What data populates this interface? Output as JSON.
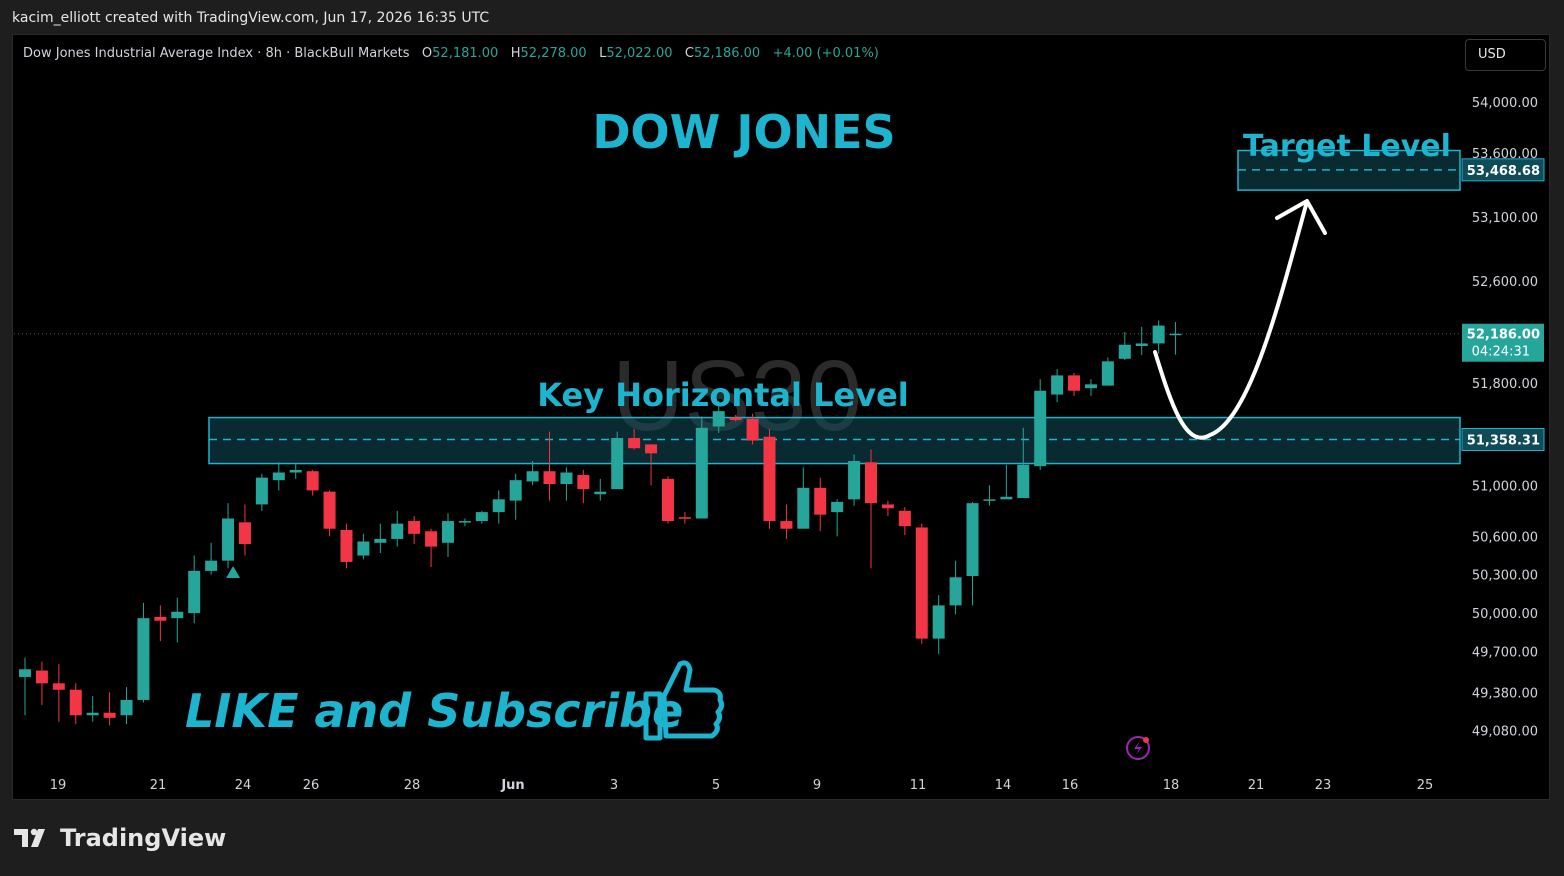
{
  "header": {
    "attribution": "kacim_elliott created with TradingView.com, Jun 17, 2026 16:35 UTC"
  },
  "legend": {
    "symbol_text": "Dow Jones Industrial Average Index · 8h · BlackBull Markets",
    "open_key": "O",
    "open": "52,181.00",
    "high_key": "H",
    "high": "52,278.00",
    "low_key": "L",
    "low": "52,022.00",
    "close_key": "C",
    "close": "52,186.00",
    "change": "+4.00 (+0.01%)"
  },
  "currency_button": "USD",
  "footer": {
    "brand": "TradingView"
  },
  "colors": {
    "up": "#26a69a",
    "down": "#f23645",
    "accent": "#1cb4cf",
    "zone_fill": "#0f4c57",
    "background": "#000000",
    "arrow": "#ffffff"
  },
  "chart_data": {
    "type": "candlestick",
    "watermark": "US30",
    "yaxis": {
      "ticks": [
        49080,
        49380,
        49700,
        50000,
        50300,
        50600,
        51000,
        51800,
        52600,
        53100,
        53600,
        54000
      ],
      "ylim": [
        48850,
        54250
      ]
    },
    "xaxis": {
      "ticks": [
        {
          "label": "19",
          "bold": false
        },
        {
          "label": "21",
          "bold": false
        },
        {
          "label": "24",
          "bold": false
        },
        {
          "label": "26",
          "bold": false
        },
        {
          "label": "28",
          "bold": false
        },
        {
          "label": "Jun",
          "bold": true
        },
        {
          "label": "3",
          "bold": false
        },
        {
          "label": "5",
          "bold": false
        },
        {
          "label": "9",
          "bold": false
        },
        {
          "label": "11",
          "bold": false
        },
        {
          "label": "14",
          "bold": false
        },
        {
          "label": "16",
          "bold": false
        },
        {
          "label": "18",
          "bold": false
        },
        {
          "label": "21",
          "bold": false
        },
        {
          "label": "23",
          "bold": false
        },
        {
          "label": "25",
          "bold": false
        }
      ]
    },
    "candles": [
      [
        49500,
        49560,
        49650,
        49200
      ],
      [
        49550,
        49450,
        49620,
        49280
      ],
      [
        49450,
        49400,
        49600,
        49150
      ],
      [
        49400,
        49200,
        49450,
        49130
      ],
      [
        49200,
        49220,
        49350,
        49150
      ],
      [
        49220,
        49180,
        49380,
        49120
      ],
      [
        49200,
        49320,
        49420,
        49130
      ],
      [
        49320,
        49960,
        50080,
        49300
      ],
      [
        49970,
        49940,
        50060,
        49780
      ],
      [
        49960,
        50010,
        50120,
        49770
      ],
      [
        50000,
        50330,
        50450,
        49920
      ],
      [
        50330,
        50410,
        50550,
        50300
      ],
      [
        50410,
        50740,
        50860,
        50350
      ],
      [
        50710,
        50540,
        50850,
        50450
      ],
      [
        50850,
        51060,
        51090,
        50800
      ],
      [
        51040,
        51100,
        51180,
        50960
      ],
      [
        51100,
        51120,
        51170,
        51050
      ],
      [
        51110,
        50960,
        51120,
        50920
      ],
      [
        50950,
        50660,
        50960,
        50600
      ],
      [
        50650,
        50400,
        50700,
        50350
      ],
      [
        50450,
        50560,
        50620,
        50420
      ],
      [
        50550,
        50580,
        50700,
        50470
      ],
      [
        50580,
        50700,
        50800,
        50520
      ],
      [
        50720,
        50620,
        50760,
        50540
      ],
      [
        50640,
        50520,
        50660,
        50360
      ],
      [
        50550,
        50720,
        50780,
        50440
      ],
      [
        50710,
        50720,
        50740,
        50680
      ],
      [
        50720,
        50790,
        50800,
        50700
      ],
      [
        50790,
        50890,
        50960,
        50700
      ],
      [
        50880,
        51040,
        51090,
        50730
      ],
      [
        51030,
        51110,
        51190,
        51000
      ],
      [
        51110,
        51010,
        51420,
        50880
      ],
      [
        51010,
        51100,
        51140,
        50880
      ],
      [
        51080,
        50970,
        51120,
        50860
      ],
      [
        50930,
        50950,
        51050,
        50880
      ],
      [
        50970,
        51370,
        51420,
        50990
      ],
      [
        51370,
        51290,
        51440,
        51280
      ],
      [
        51320,
        51250,
        51320,
        51000
      ],
      [
        51050,
        50720,
        51070,
        50700
      ],
      [
        50750,
        50740,
        50790,
        50700
      ],
      [
        50740,
        51450,
        51540,
        50740
      ],
      [
        51460,
        51580,
        51660,
        51410
      ],
      [
        51530,
        51510,
        51550,
        51500
      ],
      [
        51520,
        51350,
        51560,
        51320
      ],
      [
        51380,
        50720,
        51440,
        50660
      ],
      [
        50720,
        50660,
        50850,
        50580
      ],
      [
        50660,
        50980,
        51140,
        50660
      ],
      [
        50980,
        50770,
        51060,
        50640
      ],
      [
        50790,
        50870,
        50890,
        50600
      ],
      [
        50890,
        51190,
        51240,
        50840
      ],
      [
        51180,
        50860,
        51280,
        50350
      ],
      [
        50850,
        50820,
        50880,
        50760
      ],
      [
        50800,
        50680,
        50830,
        50610
      ],
      [
        50670,
        49800,
        50700,
        49760
      ],
      [
        49800,
        50060,
        50140,
        49680
      ],
      [
        50060,
        50280,
        50410,
        49990
      ],
      [
        50290,
        50860,
        50870,
        50060
      ],
      [
        50880,
        50890,
        51000,
        50840
      ],
      [
        50890,
        50910,
        51160,
        50900
      ],
      [
        50900,
        51160,
        51450,
        50900
      ],
      [
        51150,
        51740,
        51830,
        51120
      ],
      [
        51710,
        51860,
        51910,
        51650
      ],
      [
        51860,
        51740,
        51880,
        51700
      ],
      [
        51760,
        51790,
        51830,
        51700
      ],
      [
        51780,
        51970,
        52000,
        51780
      ],
      [
        51990,
        52100,
        52200,
        51980
      ],
      [
        52090,
        52110,
        52240,
        52020
      ],
      [
        52110,
        52250,
        52290,
        52030
      ],
      [
        52181,
        52186,
        52278,
        52022
      ]
    ],
    "annotations": {
      "title": "DOW JONES",
      "key_level_label": "Key Horizontal Level",
      "key_level": 51358.31,
      "key_level_text": "51,358.31",
      "key_zone": [
        51170,
        51530
      ],
      "target_label": "Target Level",
      "target_level": 53468.68,
      "target_level_text": "53,468.68",
      "target_zone": [
        53310,
        53620
      ],
      "current_price": 52186.0,
      "current_price_text": "52,186.00",
      "countdown": "04:24:31",
      "cta": "LIKE and Subscribe"
    }
  }
}
